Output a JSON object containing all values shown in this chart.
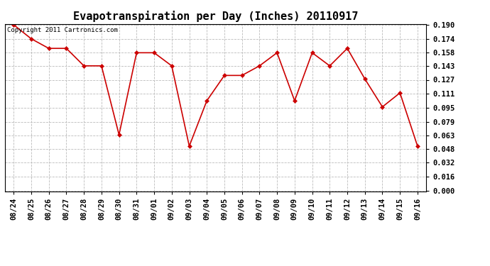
{
  "title": "Evapotranspiration per Day (Inches) 20110917",
  "copyright_text": "Copyright 2011 Cartronics.com",
  "dates": [
    "08/24",
    "08/25",
    "08/26",
    "08/27",
    "08/28",
    "08/29",
    "08/30",
    "08/31",
    "09/01",
    "09/02",
    "09/03",
    "09/04",
    "09/05",
    "09/06",
    "09/07",
    "09/08",
    "09/09",
    "09/10",
    "09/11",
    "09/12",
    "09/13",
    "09/14",
    "09/15",
    "09/16"
  ],
  "values": [
    0.19,
    0.174,
    0.163,
    0.163,
    0.143,
    0.143,
    0.064,
    0.158,
    0.158,
    0.143,
    0.051,
    0.103,
    0.132,
    0.132,
    0.143,
    0.158,
    0.103,
    0.158,
    0.143,
    0.163,
    0.128,
    0.096,
    0.112,
    0.051
  ],
  "line_color": "#cc0000",
  "marker": "D",
  "marker_size": 3,
  "ylim": [
    0.0,
    0.19
  ],
  "yticks": [
    0.0,
    0.016,
    0.032,
    0.048,
    0.063,
    0.079,
    0.095,
    0.111,
    0.127,
    0.143,
    0.158,
    0.174,
    0.19
  ],
  "background_color": "#ffffff",
  "grid_color": "#bbbbbb",
  "title_fontsize": 11,
  "copyright_fontsize": 6.5,
  "tick_fontsize": 7.5,
  "tick_fontweight": "bold"
}
